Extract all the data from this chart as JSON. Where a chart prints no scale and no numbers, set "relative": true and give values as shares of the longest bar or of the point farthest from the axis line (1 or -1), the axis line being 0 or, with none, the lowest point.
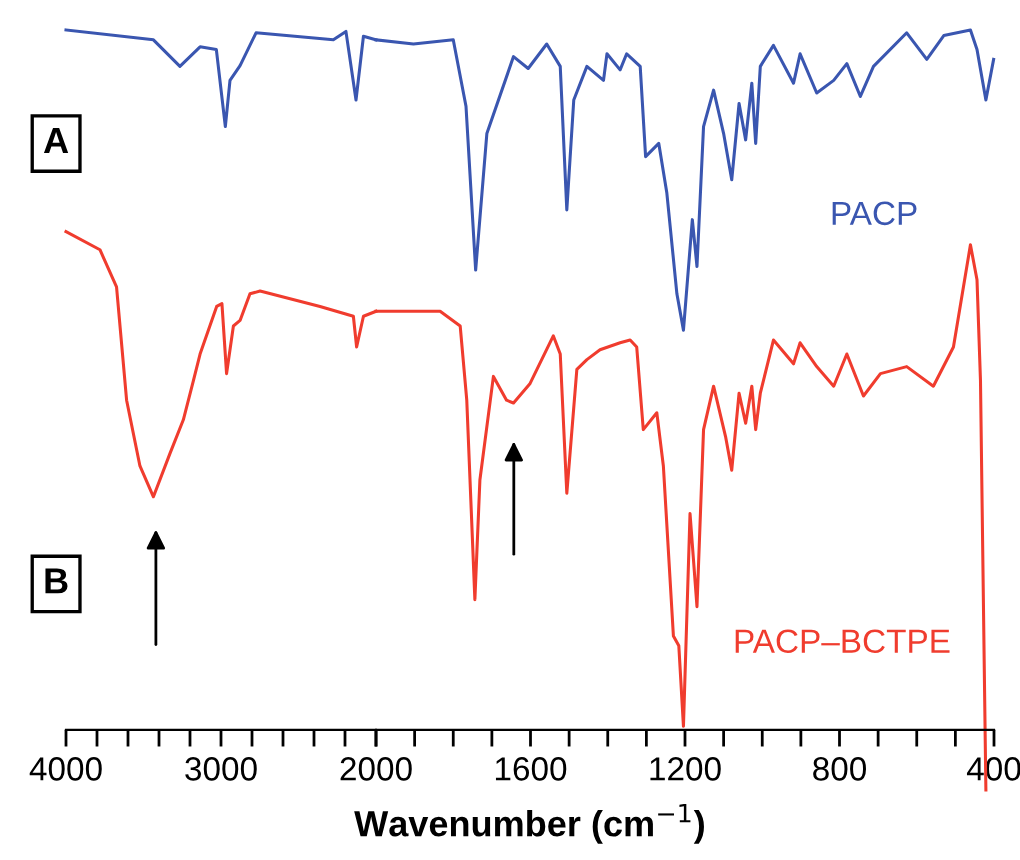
{
  "chart_data": [
    {
      "type": "line",
      "relative": true,
      "xlim": [
        4000,
        2000
      ],
      "xticks": [
        4000,
        {
          "value": 3800,
          "label": null
        },
        {
          "value": 3600,
          "label": null
        },
        {
          "value": 3400,
          "label": null
        },
        {
          "value": 3200,
          "label": null
        },
        3000,
        {
          "value": 2800,
          "label": null
        },
        {
          "value": 2600,
          "label": null
        },
        {
          "value": 2400,
          "label": null
        },
        {
          "value": 2200,
          "label": null
        },
        2000
      ],
      "annotations": [
        "A",
        "B"
      ],
      "grid": false,
      "marker": "none",
      "line_style": "solid",
      "tick_labels": "x",
      "series": [
        {
          "color": "#3a56b0",
          "x": [
            4000,
            3436,
            3265,
            3135,
            3030,
            2972,
            2942,
            2877,
            2774,
            2275,
            2194,
            2129,
            2081,
            2000
          ],
          "values": [
            1.0,
            0.986,
            0.948,
            0.976,
            0.972,
            0.862,
            0.928,
            0.949,
            0.996,
            0.986,
            0.998,
            0.9,
            0.991,
            0.986
          ]
        },
        {
          "color": "#f03c2e",
          "x": [
            4000,
            3781,
            3674,
            3609,
            3523,
            3436,
            3329,
            3243,
            3178,
            3135,
            3028,
            2994,
            2964,
            2920,
            2877,
            2813,
            2748,
            2361,
            2146,
            2125,
            2081,
            2000
          ],
          "values": [
            0.712,
            0.686,
            0.633,
            0.471,
            0.377,
            0.333,
            0.395,
            0.443,
            0.499,
            0.537,
            0.605,
            0.609,
            0.509,
            0.577,
            0.585,
            0.623,
            0.627,
            0.605,
            0.591,
            0.547,
            0.591,
            0.598
          ]
        }
      ]
    },
    {
      "type": "line",
      "relative": true,
      "xlabel": "Wavenumber (cm$^{−1}$)",
      "xlim": [
        2000,
        400
      ],
      "xticks": [
        {
          "value": 2000,
          "label": null
        },
        {
          "value": 1900,
          "label": null
        },
        {
          "value": 1800,
          "label": null
        },
        {
          "value": 1700,
          "label": null
        },
        1600,
        {
          "value": 1500,
          "label": null
        },
        {
          "value": 1400,
          "label": null
        },
        {
          "value": 1300,
          "label": null
        },
        1200,
        {
          "value": 1100,
          "label": null
        },
        {
          "value": 1000,
          "label": null
        },
        {
          "value": 900,
          "label": null
        },
        800,
        {
          "value": 700,
          "label": null
        },
        {
          "value": 600,
          "label": null
        },
        {
          "value": 500,
          "label": null
        },
        400
      ],
      "grid": false,
      "marker": "none",
      "line_style": "solid",
      "tick_labels": "x",
      "series": [
        {
          "name": "PACP",
          "color": "#3a56b0",
          "x": [
            2000,
            1903,
            1800,
            1767,
            1742,
            1713,
            1644,
            1606,
            1558,
            1523,
            1506,
            1488,
            1454,
            1411,
            1402,
            1368,
            1351,
            1316,
            1302,
            1268,
            1247,
            1221,
            1204,
            1181,
            1169,
            1152,
            1126,
            1100,
            1079,
            1060,
            1043,
            1027,
            1017,
            1005,
            971,
            919,
            902,
            859,
            815,
            781,
            746,
            712,
            626,
            574,
            530,
            461,
            444,
            421,
            401
          ],
          "values": [
            0.986,
            0.98,
            0.986,
            0.891,
            0.657,
            0.852,
            0.962,
            0.945,
            0.98,
            0.948,
            0.743,
            0.9,
            0.948,
            0.928,
            0.966,
            0.943,
            0.966,
            0.948,
            0.819,
            0.838,
            0.767,
            0.623,
            0.571,
            0.729,
            0.662,
            0.862,
            0.914,
            0.852,
            0.786,
            0.895,
            0.843,
            0.924,
            0.838,
            0.948,
            0.978,
            0.924,
            0.966,
            0.91,
            0.928,
            0.952,
            0.905,
            0.948,
            0.996,
            0.958,
            0.992,
            1.0,
            0.972,
            0.9,
            0.958
          ]
        },
        {
          "name": "PACP–BCTPE",
          "color": "#f03c2e",
          "x": [
            2000,
            1834,
            1782,
            1765,
            1744,
            1731,
            1696,
            1662,
            1644,
            1601,
            1541,
            1523,
            1506,
            1480,
            1454,
            1420,
            1368,
            1342,
            1325,
            1308,
            1273,
            1256,
            1230,
            1216,
            1204,
            1187,
            1169,
            1152,
            1126,
            1095,
            1079,
            1060,
            1043,
            1027,
            1017,
            1005,
            971,
            919,
            902,
            859,
            815,
            781,
            738,
            694,
            626,
            557,
            505,
            461,
            444,
            435,
            421
          ],
          "values": [
            0.598,
            0.598,
            0.577,
            0.471,
            0.186,
            0.357,
            0.505,
            0.471,
            0.467,
            0.495,
            0.563,
            0.537,
            0.338,
            0.515,
            0.529,
            0.543,
            0.553,
            0.557,
            0.547,
            0.429,
            0.453,
            0.377,
            0.134,
            0.12,
            0.005,
            0.309,
            0.176,
            0.429,
            0.491,
            0.419,
            0.371,
            0.481,
            0.438,
            0.491,
            0.429,
            0.481,
            0.557,
            0.523,
            0.553,
            0.519,
            0.491,
            0.537,
            0.477,
            0.509,
            0.519,
            0.491,
            0.547,
            0.693,
            0.643,
            0.499,
            -0.086
          ]
        }
      ]
    }
  ]
}
